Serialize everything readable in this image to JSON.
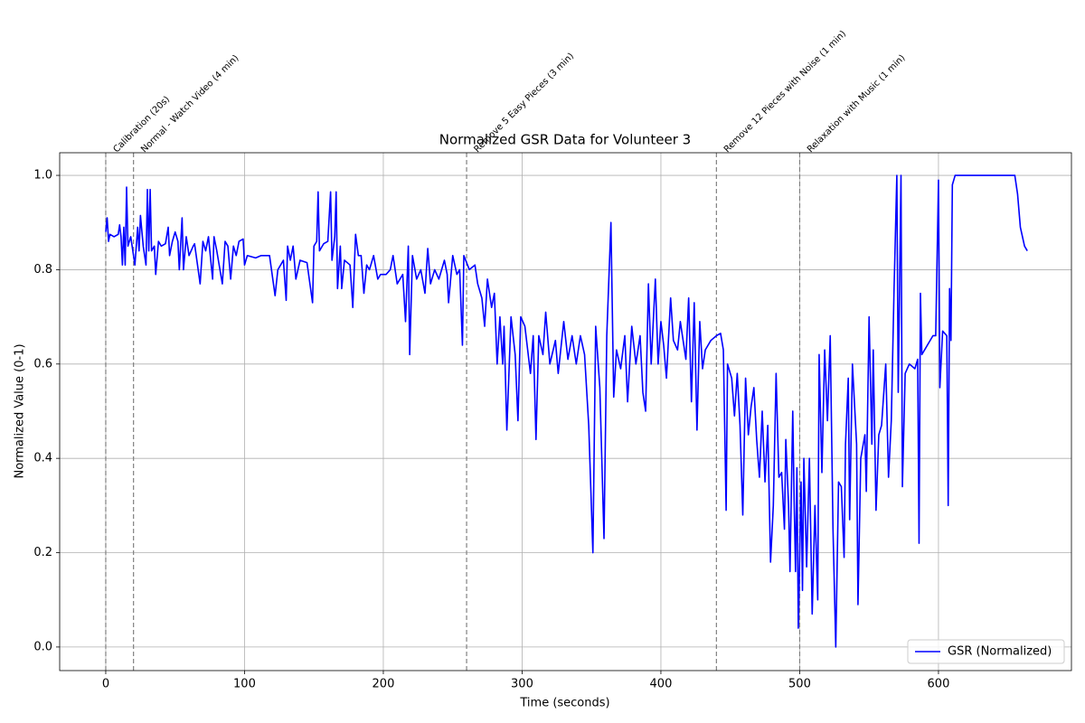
{
  "chart_data": {
    "type": "line",
    "title": "Normalized GSR Data for Volunteer 3",
    "x_label": "Time (seconds)",
    "y_label": "Normalized Value (0-1)",
    "xlim": [
      -33.2,
      695.8
    ],
    "ylim": [
      -0.05,
      1.048
    ],
    "xticks": [
      0,
      100,
      200,
      300,
      400,
      500,
      600
    ],
    "yticks": [
      {
        "value": 0,
        "label": "0.0"
      },
      0.2,
      0.4,
      0.6,
      0.8,
      {
        "value": 1,
        "label": "1.0"
      }
    ],
    "grid": true,
    "legend": "lower right",
    "annotations": [
      {
        "x": 0,
        "text": "Calibration (20s)"
      },
      {
        "x": 20,
        "text": "Normal - Watch Video (4 min)"
      },
      {
        "x": 260,
        "text": "Remove 5 Easy Pieces (3 min)"
      },
      {
        "x": 440,
        "text": "Remove 12 Pieces with Noise (1 min)"
      },
      {
        "x": 500,
        "text": "Relaxation with Music (1 min)"
      }
    ],
    "x": [
      0,
      1,
      2,
      3,
      6,
      9,
      10,
      11,
      12,
      13,
      14,
      15,
      16,
      18,
      20,
      21,
      23,
      24,
      25,
      27,
      29,
      30,
      31,
      32,
      33,
      35,
      36,
      38,
      40,
      43,
      45,
      46,
      48,
      50,
      52,
      53,
      55,
      56,
      58,
      60,
      63,
      64,
      68,
      70,
      72,
      74,
      77,
      78,
      80,
      84,
      86,
      88,
      90,
      92,
      94,
      96,
      99,
      100,
      102,
      108,
      112,
      118,
      122,
      124,
      128,
      130,
      131,
      133,
      135,
      137,
      140,
      145,
      149,
      150,
      152,
      153,
      154,
      157,
      160,
      162,
      163,
      165,
      166,
      167,
      169,
      170,
      172,
      176,
      178,
      180,
      182,
      184,
      186,
      188,
      190,
      193,
      196,
      198,
      202,
      205,
      207,
      210,
      214,
      216,
      218,
      219,
      221,
      224,
      227,
      230,
      232,
      234,
      237,
      240,
      244,
      246,
      247,
      250,
      253,
      255,
      257,
      258,
      262,
      266,
      268,
      271,
      273,
      275,
      278,
      280,
      282,
      284,
      286,
      287,
      289,
      292,
      295,
      297,
      299,
      302,
      306,
      308,
      310,
      312,
      315,
      317,
      320,
      324,
      326,
      330,
      333,
      336,
      339,
      342,
      345,
      348,
      351,
      353,
      356,
      359,
      361,
      364,
      366,
      368,
      371,
      374,
      376,
      379,
      382,
      385,
      387,
      389,
      391,
      393,
      396,
      398,
      400,
      402,
      404,
      407,
      409,
      412,
      414,
      416,
      418,
      420,
      422,
      424,
      426,
      428,
      430,
      432,
      436,
      440,
      443,
      445,
      447,
      448,
      451,
      453,
      455,
      457,
      459,
      461,
      463,
      465,
      467,
      469,
      471,
      473,
      475,
      477,
      479,
      481,
      483,
      485,
      487,
      489,
      490,
      492,
      493,
      495,
      496,
      497,
      498,
      499,
      501,
      502,
      503,
      505,
      507,
      509,
      511,
      513,
      514,
      516,
      518,
      520,
      522,
      524,
      526,
      528,
      530,
      532,
      533,
      535,
      536,
      538,
      541,
      542,
      544,
      547,
      548,
      550,
      552,
      553,
      555,
      557,
      559,
      562,
      564,
      566,
      568,
      570,
      571,
      573,
      574,
      576,
      579,
      583,
      585,
      586,
      587,
      588,
      592,
      596,
      598,
      600,
      601,
      603,
      606,
      607,
      608,
      609,
      610,
      612,
      650,
      655,
      657,
      659,
      662,
      664
    ],
    "series": [
      {
        "name": "GSR (Normalized)",
        "color": "#0000ff",
        "values": [
          0.88,
          0.91,
          0.86,
          0.875,
          0.87,
          0.875,
          0.895,
          0.87,
          0.81,
          0.89,
          0.81,
          0.975,
          0.85,
          0.87,
          0.83,
          0.81,
          0.89,
          0.84,
          0.915,
          0.85,
          0.81,
          0.97,
          0.84,
          0.97,
          0.84,
          0.85,
          0.79,
          0.86,
          0.85,
          0.855,
          0.89,
          0.83,
          0.86,
          0.88,
          0.86,
          0.8,
          0.91,
          0.8,
          0.87,
          0.83,
          0.85,
          0.855,
          0.77,
          0.86,
          0.84,
          0.87,
          0.78,
          0.87,
          0.84,
          0.77,
          0.86,
          0.85,
          0.78,
          0.85,
          0.83,
          0.86,
          0.865,
          0.81,
          0.83,
          0.825,
          0.83,
          0.83,
          0.745,
          0.8,
          0.82,
          0.735,
          0.85,
          0.82,
          0.85,
          0.78,
          0.82,
          0.815,
          0.73,
          0.85,
          0.86,
          0.965,
          0.84,
          0.855,
          0.86,
          0.965,
          0.82,
          0.87,
          0.965,
          0.76,
          0.85,
          0.76,
          0.82,
          0.81,
          0.72,
          0.875,
          0.83,
          0.83,
          0.75,
          0.81,
          0.8,
          0.83,
          0.78,
          0.79,
          0.79,
          0.8,
          0.83,
          0.77,
          0.79,
          0.69,
          0.85,
          0.62,
          0.83,
          0.78,
          0.8,
          0.75,
          0.845,
          0.77,
          0.8,
          0.78,
          0.82,
          0.79,
          0.73,
          0.83,
          0.79,
          0.8,
          0.64,
          0.83,
          0.8,
          0.81,
          0.77,
          0.74,
          0.68,
          0.78,
          0.72,
          0.75,
          0.6,
          0.7,
          0.6,
          0.68,
          0.46,
          0.7,
          0.62,
          0.48,
          0.7,
          0.68,
          0.58,
          0.66,
          0.44,
          0.66,
          0.62,
          0.71,
          0.6,
          0.65,
          0.58,
          0.69,
          0.61,
          0.66,
          0.6,
          0.66,
          0.62,
          0.47,
          0.2,
          0.68,
          0.55,
          0.23,
          0.66,
          0.9,
          0.53,
          0.63,
          0.59,
          0.66,
          0.52,
          0.68,
          0.6,
          0.66,
          0.54,
          0.5,
          0.77,
          0.6,
          0.78,
          0.6,
          0.69,
          0.64,
          0.57,
          0.74,
          0.65,
          0.63,
          0.69,
          0.65,
          0.61,
          0.74,
          0.52,
          0.73,
          0.46,
          0.69,
          0.59,
          0.63,
          0.65,
          0.66,
          0.665,
          0.63,
          0.29,
          0.6,
          0.57,
          0.49,
          0.58,
          0.47,
          0.28,
          0.57,
          0.45,
          0.51,
          0.55,
          0.44,
          0.36,
          0.5,
          0.35,
          0.47,
          0.18,
          0.3,
          0.58,
          0.36,
          0.37,
          0.25,
          0.44,
          0.3,
          0.16,
          0.5,
          0.31,
          0.16,
          0.38,
          0.04,
          0.35,
          0.12,
          0.4,
          0.17,
          0.4,
          0.07,
          0.3,
          0.1,
          0.62,
          0.37,
          0.63,
          0.48,
          0.66,
          0.25,
          0,
          0.35,
          0.34,
          0.19,
          0.43,
          0.57,
          0.27,
          0.6,
          0.43,
          0.09,
          0.4,
          0.45,
          0.33,
          0.7,
          0.43,
          0.63,
          0.29,
          0.45,
          0.47,
          0.6,
          0.36,
          0.48,
          0.76,
          1,
          0.54,
          1,
          0.34,
          0.58,
          0.6,
          0.59,
          0.61,
          0.22,
          0.75,
          0.62,
          0.64,
          0.66,
          0.66,
          0.99,
          0.55,
          0.67,
          0.66,
          0.3,
          0.76,
          0.65,
          0.98,
          1,
          1,
          1,
          0.96,
          0.89,
          0.85,
          0.84
        ]
      }
    ]
  }
}
